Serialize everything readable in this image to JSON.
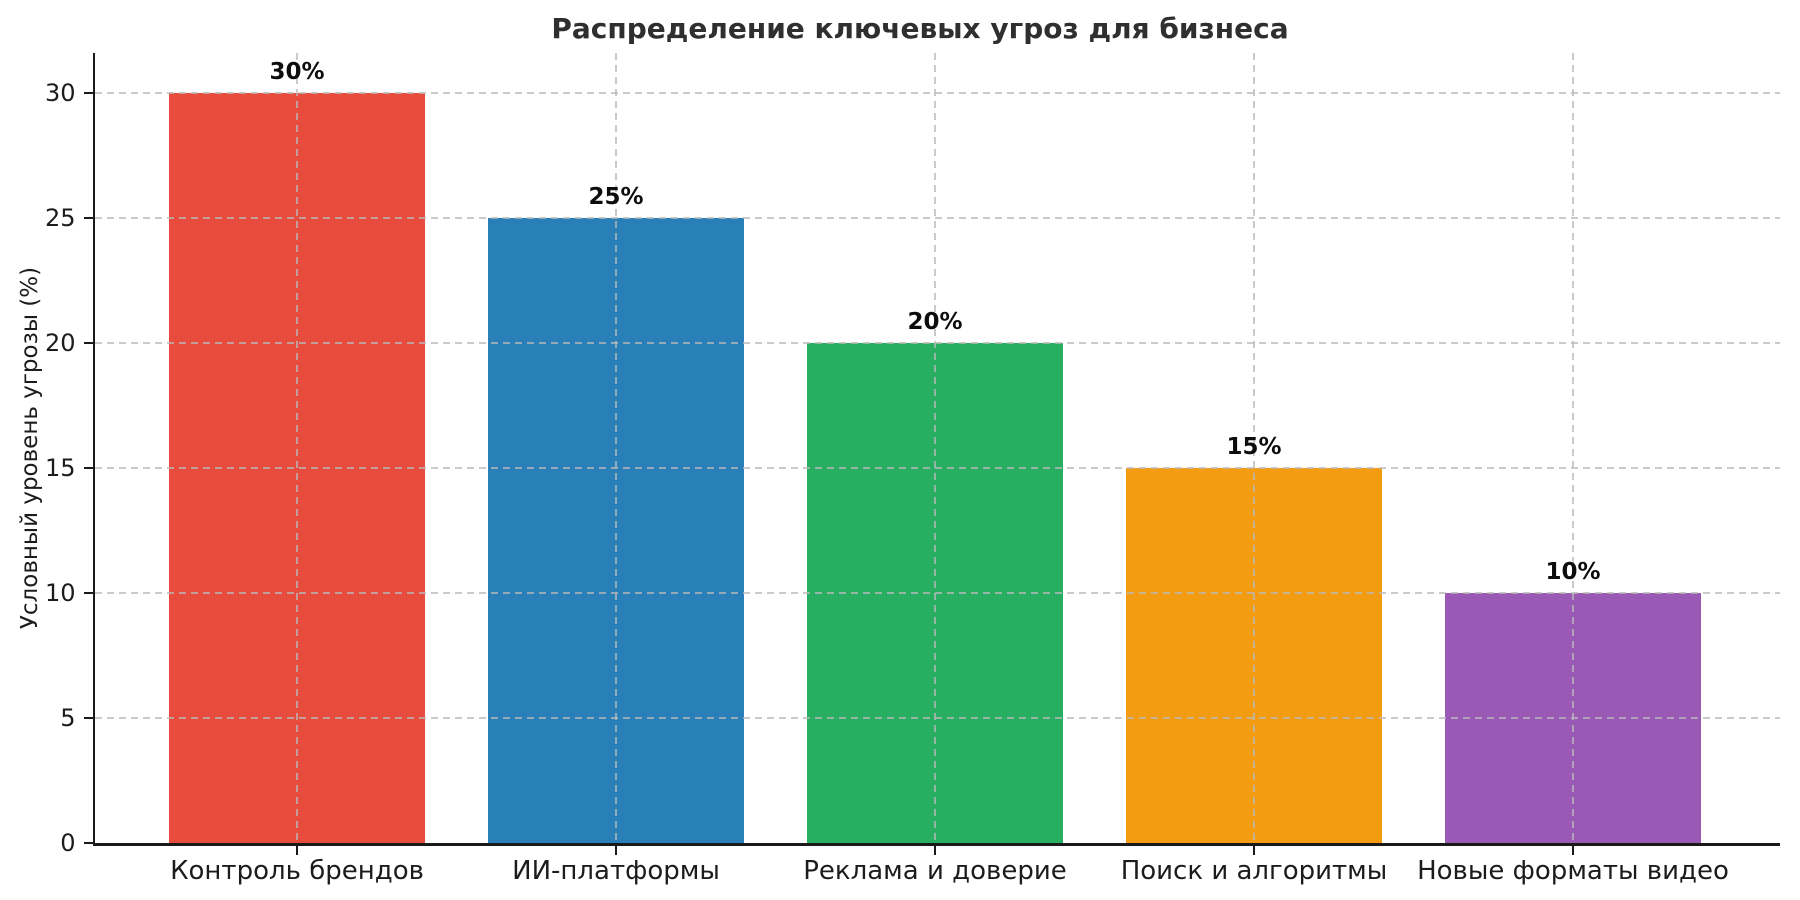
{
  "chart_data": {
    "type": "bar",
    "title": "Распределение ключевых угроз для бизнеса",
    "xlabel": "",
    "ylabel": "Условный уровень угрозы (%)",
    "categories": [
      "Контроль брендов",
      "ИИ-платформы",
      "Реклама и доверие",
      "Поиск и алгоритмы",
      "Новые форматы видео"
    ],
    "values": [
      30,
      25,
      20,
      15,
      10
    ],
    "bar_labels": [
      "30%",
      "25%",
      "20%",
      "15%",
      "10%"
    ],
    "bar_colors": [
      "#e74c3c",
      "#2980b9",
      "#27ae60",
      "#f39c12",
      "#9b59b6"
    ],
    "yticks": [
      0,
      5,
      10,
      15,
      20,
      25,
      30
    ],
    "ylim": [
      0,
      31.6
    ],
    "grid": {
      "style": "dashed",
      "axes": "both",
      "color": "#c8c8c8"
    },
    "legend": "none",
    "axis_color": "#1a1a1a",
    "title_color": "#2f2f2f"
  }
}
